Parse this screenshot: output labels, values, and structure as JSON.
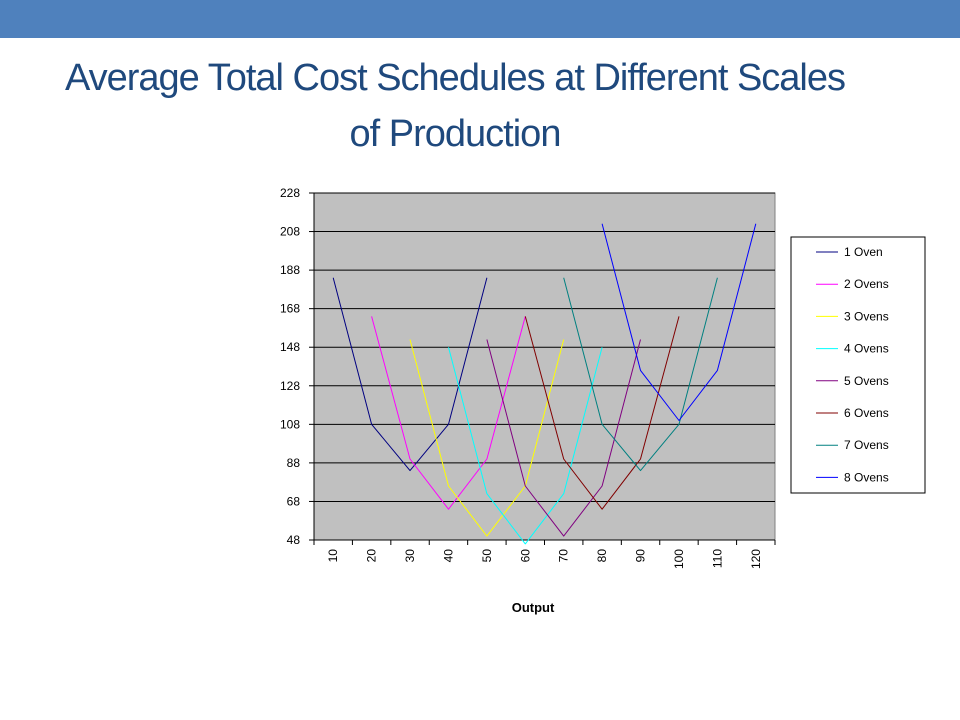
{
  "title": {
    "line1": "Average Total Cost Schedules at Different Scales",
    "line2": "of Production"
  },
  "colors": {
    "top_band": "#4f81bd",
    "title": "#1f497d",
    "plot_background": "#c0c0c0"
  },
  "chart_data": {
    "type": "line",
    "title": "Average Total Cost Schedules at Different Scales of Production",
    "xlabel": "Output",
    "ylabel": "",
    "categories": [
      "10",
      "20",
      "30",
      "40",
      "50",
      "60",
      "70",
      "80",
      "90",
      "100",
      "110",
      "120"
    ],
    "ylim": [
      48,
      228
    ],
    "yticks": [
      48,
      68,
      88,
      108,
      128,
      148,
      168,
      188,
      208,
      228
    ],
    "grid": "horizontal",
    "legend": "right",
    "series": [
      {
        "name": "1 Oven",
        "color": "#000080",
        "values": [
          184,
          108,
          84,
          108,
          184,
          null,
          null,
          null,
          null,
          null,
          null,
          null
        ]
      },
      {
        "name": "2 Ovens",
        "color": "#ff00ff",
        "values": [
          null,
          164,
          90,
          64,
          90,
          164,
          null,
          null,
          null,
          null,
          null,
          null
        ]
      },
      {
        "name": "3 Ovens",
        "color": "#ffff00",
        "values": [
          null,
          null,
          152,
          76,
          50,
          76,
          152,
          null,
          null,
          null,
          null,
          null
        ]
      },
      {
        "name": "4 Ovens",
        "color": "#00ffff",
        "values": [
          null,
          null,
          null,
          148,
          72,
          46,
          72,
          148,
          null,
          null,
          null,
          null
        ]
      },
      {
        "name": "5 Ovens",
        "color": "#800080",
        "values": [
          null,
          null,
          null,
          null,
          152,
          76,
          50,
          76,
          152,
          null,
          null,
          null
        ]
      },
      {
        "name": "6 Ovens",
        "color": "#800000",
        "values": [
          null,
          null,
          null,
          null,
          null,
          164,
          90,
          64,
          90,
          164,
          null,
          null
        ]
      },
      {
        "name": "7 Ovens",
        "color": "#008080",
        "values": [
          null,
          null,
          null,
          null,
          null,
          null,
          184,
          108,
          84,
          108,
          184,
          null
        ]
      },
      {
        "name": "8 Ovens",
        "color": "#0000ff",
        "values": [
          null,
          null,
          null,
          null,
          null,
          null,
          null,
          212,
          136,
          110,
          136,
          212
        ]
      }
    ]
  }
}
